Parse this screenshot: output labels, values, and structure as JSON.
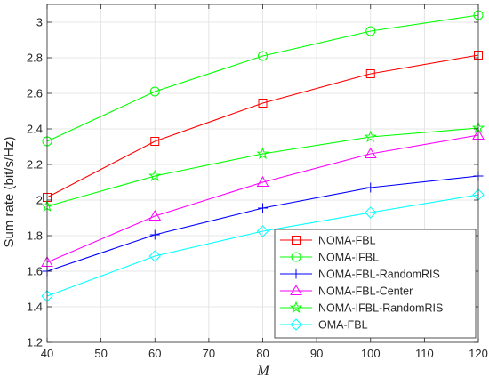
{
  "chart_data": {
    "type": "line",
    "title": "",
    "xlabel": "M",
    "ylabel": "Sum rate (bit/s/Hz)",
    "x": [
      40,
      60,
      80,
      100,
      120
    ],
    "xlim": [
      40,
      120
    ],
    "ylim": [
      1.2,
      3.1
    ],
    "xticks": [
      40,
      50,
      60,
      70,
      80,
      90,
      100,
      110,
      120
    ],
    "yticks": [
      1.2,
      1.4,
      1.6,
      1.8,
      2,
      2.2,
      2.4,
      2.6,
      2.8,
      3
    ],
    "xtick_labels": [
      "40",
      "50",
      "60",
      "70",
      "80",
      "90",
      "100",
      "110",
      "120"
    ],
    "ytick_labels": [
      "1.2",
      "1.4",
      "1.6",
      "1.8",
      "2",
      "2.2",
      "2.4",
      "2.6",
      "2.8",
      "3"
    ],
    "grid": true,
    "legend_position": "bottom-right",
    "series": [
      {
        "name": "NOMA-FBL",
        "color": "#ff0000",
        "marker": "square",
        "values": [
          2.015,
          2.33,
          2.545,
          2.71,
          2.815
        ]
      },
      {
        "name": "NOMA-IFBL",
        "color": "#00ff00",
        "marker": "circle",
        "values": [
          2.33,
          2.61,
          2.81,
          2.95,
          3.04
        ]
      },
      {
        "name": "NOMA-FBL-RandomRIS",
        "color": "#0000ff",
        "marker": "plus",
        "values": [
          1.6,
          1.805,
          1.955,
          2.07,
          2.135
        ]
      },
      {
        "name": "NOMA-FBL-Center",
        "color": "#ff00ff",
        "marker": "triangle",
        "values": [
          1.65,
          1.91,
          2.1,
          2.26,
          2.365
        ]
      },
      {
        "name": "NOMA-IFBL-RandomRIS",
        "color": "#00ff00",
        "marker": "star",
        "values": [
          1.965,
          2.135,
          2.26,
          2.355,
          2.405
        ]
      },
      {
        "name": "OMA-FBL",
        "color": "#00ffff",
        "marker": "diamond",
        "values": [
          1.46,
          1.685,
          1.825,
          1.93,
          2.03
        ]
      }
    ]
  }
}
